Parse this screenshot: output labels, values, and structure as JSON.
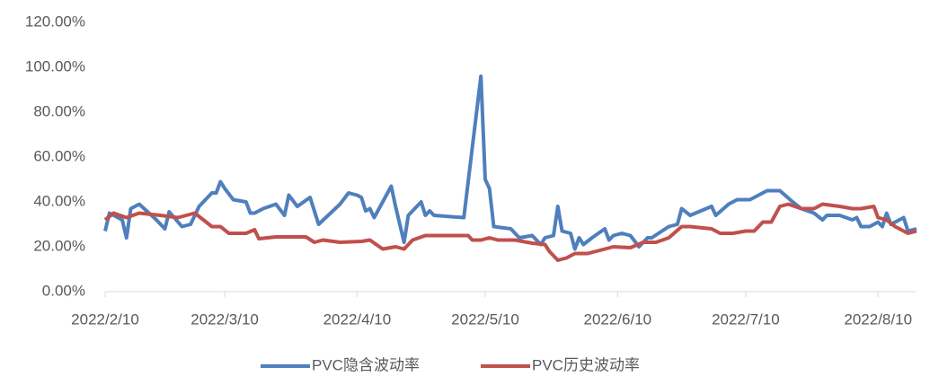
{
  "chart_data": {
    "type": "line",
    "xlim": [
      "2022/2/10",
      "2022/8/19"
    ],
    "xticks": [
      "2022/2/10",
      "2022/3/10",
      "2022/4/10",
      "2022/5/10",
      "2022/6/10",
      "2022/7/10",
      "2022/8/10"
    ],
    "ylim": [
      0,
      120
    ],
    "yticks": [
      {
        "value": 0,
        "label": "0.00%"
      },
      {
        "value": 20,
        "label": "20.00%"
      },
      {
        "value": 40,
        "label": "40.00%"
      },
      {
        "value": 60,
        "label": "60.00%"
      },
      {
        "value": 80,
        "label": "80.00%"
      },
      {
        "value": 100,
        "label": "100.00%"
      },
      {
        "value": 120,
        "label": "120.00%"
      }
    ],
    "grid": false,
    "legend": "bottom",
    "series": [
      {
        "name": "PVC隐含波动率",
        "color": "#4f7fbd",
        "x": [
          "2022/2/10",
          "2022/2/11",
          "2022/2/14",
          "2022/2/15",
          "2022/2/16",
          "2022/2/18",
          "2022/2/22",
          "2022/2/24",
          "2022/2/25",
          "2022/2/28",
          "2022/3/2",
          "2022/3/4",
          "2022/3/7",
          "2022/3/8",
          "2022/3/9",
          "2022/3/10",
          "2022/3/12",
          "2022/3/15",
          "2022/3/16",
          "2022/3/17",
          "2022/3/19",
          "2022/3/22",
          "2022/3/24",
          "2022/3/25",
          "2022/3/27",
          "2022/3/30",
          "2022/4/1",
          "2022/4/6",
          "2022/4/8",
          "2022/4/10",
          "2022/4/11",
          "2022/4/12",
          "2022/4/13",
          "2022/4/14",
          "2022/4/18",
          "2022/4/19",
          "2022/4/21",
          "2022/4/22",
          "2022/4/25",
          "2022/4/26",
          "2022/4/27",
          "2022/4/28",
          "2022/5/5",
          "2022/5/9",
          "2022/5/10",
          "2022/5/11",
          "2022/5/12",
          "2022/5/16",
          "2022/5/18",
          "2022/5/21",
          "2022/5/23",
          "2022/5/24",
          "2022/5/26",
          "2022/5/27",
          "2022/5/28",
          "2022/5/30",
          "2022/5/31",
          "2022/6/1",
          "2022/6/2",
          "2022/6/4",
          "2022/6/7",
          "2022/6/8",
          "2022/6/9",
          "2022/6/11",
          "2022/6/13",
          "2022/6/15",
          "2022/6/17",
          "2022/6/18",
          "2022/6/22",
          "2022/6/24",
          "2022/6/25",
          "2022/6/27",
          "2022/6/29",
          "2022/7/2",
          "2022/7/3",
          "2022/7/6",
          "2022/7/8",
          "2022/7/11",
          "2022/7/12",
          "2022/7/15",
          "2022/7/18",
          "2022/7/21",
          "2022/7/23",
          "2022/7/26",
          "2022/7/28",
          "2022/7/29",
          "2022/8/1",
          "2022/8/4",
          "2022/8/5",
          "2022/8/6",
          "2022/8/8",
          "2022/8/10",
          "2022/8/11",
          "2022/8/12",
          "2022/8/13",
          "2022/8/16",
          "2022/8/17",
          "2022/8/19"
        ],
        "values": [
          27,
          35,
          32,
          24,
          37,
          39,
          32,
          28,
          35.6,
          29,
          30,
          38,
          44,
          44,
          49,
          46,
          41,
          40,
          35,
          35,
          37,
          39,
          34,
          43,
          38,
          42,
          30,
          39,
          44,
          43,
          42,
          36,
          37,
          33,
          47,
          38,
          22,
          34,
          40,
          34,
          36,
          34,
          33,
          96,
          50,
          46,
          29,
          28,
          24,
          25,
          21,
          24,
          25,
          38,
          27,
          26,
          19,
          24,
          21,
          24,
          28,
          23,
          25,
          26,
          25,
          20,
          24,
          24,
          29,
          30,
          37,
          34,
          35.6,
          38,
          34,
          39,
          41,
          41,
          42,
          45,
          45,
          40,
          37,
          35,
          32,
          34,
          34,
          32,
          33,
          29,
          29,
          31,
          29,
          35,
          30,
          33,
          27,
          28
        ]
      },
      {
        "name": "PVC历史波动率",
        "color": "#c0504d",
        "x": [
          "2022/2/10",
          "2022/2/12",
          "2022/2/15",
          "2022/2/18",
          "2022/2/23",
          "2022/2/27",
          "2022/3/3",
          "2022/3/7",
          "2022/3/9",
          "2022/3/11",
          "2022/3/15",
          "2022/3/17",
          "2022/3/18",
          "2022/3/22",
          "2022/3/29",
          "2022/3/31",
          "2022/4/2",
          "2022/4/6",
          "2022/4/11",
          "2022/4/13",
          "2022/4/16",
          "2022/4/19",
          "2022/4/21",
          "2022/4/23",
          "2022/4/26",
          "2022/4/30",
          "2022/5/6",
          "2022/5/7",
          "2022/5/9",
          "2022/5/11",
          "2022/5/13",
          "2022/5/17",
          "2022/5/21",
          "2022/5/24",
          "2022/5/25",
          "2022/5/27",
          "2022/5/29",
          "2022/5/31",
          "2022/6/3",
          "2022/6/7",
          "2022/6/9",
          "2022/6/13",
          "2022/6/16",
          "2022/6/19",
          "2022/6/22",
          "2022/6/25",
          "2022/6/27",
          "2022/7/2",
          "2022/7/4",
          "2022/7/7",
          "2022/7/10",
          "2022/7/12",
          "2022/7/14",
          "2022/7/16",
          "2022/7/18",
          "2022/7/20",
          "2022/7/23",
          "2022/7/26",
          "2022/7/28",
          "2022/8/1",
          "2022/8/4",
          "2022/8/6",
          "2022/8/9",
          "2022/8/10",
          "2022/8/12",
          "2022/8/14",
          "2022/8/17",
          "2022/8/19"
        ],
        "values": [
          32,
          35,
          33,
          35,
          34,
          33,
          35,
          29,
          29,
          26,
          26,
          27.6,
          23.6,
          24.4,
          24.4,
          22,
          23,
          22,
          22.4,
          23,
          19,
          20,
          19,
          23,
          25,
          25,
          25,
          23,
          23,
          24,
          23,
          23,
          21.6,
          21,
          18,
          14,
          15,
          17,
          17,
          19,
          20,
          19.6,
          22,
          22,
          24,
          29,
          29,
          28,
          26,
          26,
          27,
          27,
          31,
          31,
          38,
          39,
          37,
          37,
          39,
          38,
          37,
          37,
          38,
          33,
          32,
          29,
          26,
          27
        ]
      }
    ]
  }
}
